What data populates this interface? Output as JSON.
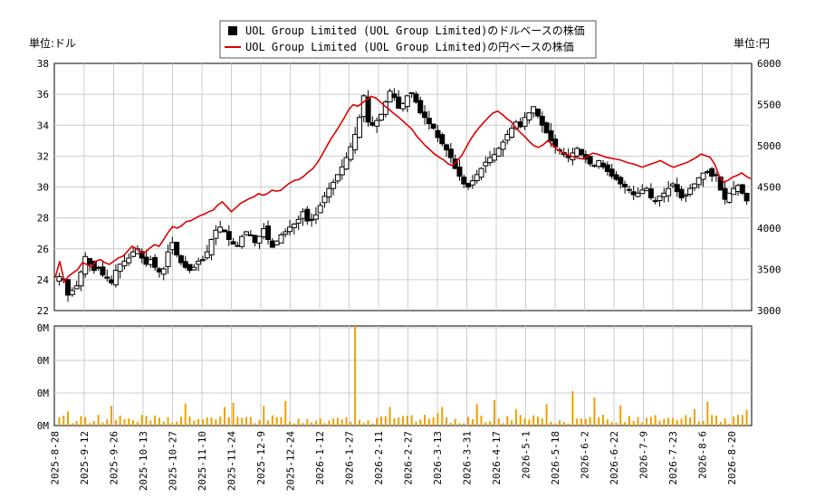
{
  "chart_data": {
    "type": "candlestick",
    "legend": [
      {
        "label": "UOL Group Limited (UOL Group Limited)のドルベースの株価",
        "color": "#000000",
        "marker": "square"
      },
      {
        "label": "UOL Group Limited (UOL Group Limited)の円ベースの株価",
        "color": "#dd0000",
        "marker": "line"
      }
    ],
    "left_unit_label": "単位:ドル",
    "right_unit_label": "単位:円",
    "volume_unit_label": "",
    "left_axis": {
      "min": 22,
      "max": 38,
      "ticks": [
        "22",
        "24",
        "26",
        "28",
        "30",
        "32",
        "34",
        "36",
        "38"
      ]
    },
    "right_axis": {
      "min": 3000,
      "max": 6000,
      "ticks": [
        "3000",
        "3500",
        "4000",
        "4500",
        "5000",
        "5500",
        "6000"
      ]
    },
    "volume_axis": {
      "ticks": [
        "0M",
        "0M",
        "0M",
        "0M"
      ]
    },
    "x_labels": [
      "2025-8-28",
      "2025-9-12",
      "2025-9-26",
      "2025-10-13",
      "2025-10-27",
      "2025-11-10",
      "2025-11-24",
      "2025-12-9",
      "2025-12-24",
      "2026-1-12",
      "2026-1-27",
      "2026-2-11",
      "2026-2-27",
      "2026-3-13",
      "2026-3-31",
      "2026-4-17",
      "2026-5-1",
      "2026-5-18",
      "2026-6-2",
      "2026-6-22",
      "2026-7-9",
      "2026-7-23",
      "2026-8-6",
      "2026-8-20"
    ],
    "usd_close": [
      24.2,
      24.0,
      23.0,
      23.3,
      23.6,
      24.5,
      25.5,
      25.0,
      24.6,
      24.8,
      24.3,
      24.1,
      23.8,
      24.6,
      25.0,
      25.2,
      25.4,
      25.8,
      26.0,
      25.4,
      25.0,
      25.3,
      24.8,
      24.5,
      24.7,
      25.8,
      26.4,
      25.6,
      25.1,
      24.8,
      24.6,
      24.8,
      25.2,
      25.3,
      25.8,
      26.6,
      27.2,
      27.4,
      27.1,
      26.6,
      26.3,
      26.2,
      26.8,
      27.1,
      26.9,
      26.4,
      26.8,
      27.3,
      26.6,
      26.1,
      26.5,
      26.9,
      27.1,
      27.4,
      27.6,
      27.9,
      28.4,
      27.8,
      27.9,
      28.2,
      28.8,
      29.4,
      29.9,
      30.3,
      30.8,
      31.3,
      31.9,
      32.6,
      33.4,
      34.5,
      35.9,
      34.2,
      34.0,
      34.3,
      34.7,
      35.5,
      36.2,
      35.8,
      35.1,
      35.4,
      35.9,
      36.1,
      35.5,
      34.8,
      34.5,
      34.1,
      33.8,
      33.2,
      32.8,
      32.4,
      31.9,
      31.2,
      30.7,
      30.2,
      30.0,
      30.4,
      30.8,
      31.2,
      31.6,
      31.9,
      32.1,
      32.5,
      32.9,
      33.4,
      33.8,
      34.2,
      33.9,
      34.5,
      34.8,
      35.2,
      34.6,
      34.0,
      33.5,
      33.0,
      32.6,
      32.4,
      32.1,
      31.9,
      32.2,
      32.5,
      32.1,
      31.8,
      31.5,
      31.4,
      31.7,
      31.3,
      31.0,
      30.7,
      30.5,
      30.2,
      30.0,
      29.8,
      29.5,
      29.6,
      29.8,
      29.9,
      29.3,
      29.1,
      29.4,
      29.6,
      29.9,
      30.2,
      29.7,
      29.3,
      29.5,
      29.9,
      30.2,
      30.6,
      30.9,
      31.0,
      30.7,
      30.8,
      29.8,
      29.2,
      29.6,
      29.9,
      30.1,
      29.6,
      29.1
    ],
    "jpy_close": [
      3400,
      3600,
      3350,
      3420,
      3460,
      3500,
      3580,
      3560,
      3530,
      3600,
      3620,
      3580,
      3560,
      3600,
      3640,
      3660,
      3720,
      3780,
      3750,
      3700,
      3710,
      3760,
      3800,
      3780,
      3860,
      3950,
      4020,
      4000,
      4030,
      4080,
      4090,
      4120,
      4150,
      4170,
      4200,
      4220,
      4280,
      4320,
      4260,
      4200,
      4250,
      4300,
      4330,
      4360,
      4380,
      4420,
      4400,
      4420,
      4460,
      4450,
      4460,
      4510,
      4550,
      4580,
      4590,
      4630,
      4680,
      4720,
      4790,
      4880,
      4980,
      5080,
      5160,
      5250,
      5340,
      5440,
      5500,
      5480,
      5520,
      5560,
      5600,
      5580,
      5530,
      5480,
      5440,
      5390,
      5350,
      5300,
      5250,
      5200,
      5120,
      5060,
      5000,
      4950,
      4900,
      4860,
      4830,
      4780,
      4760,
      4820,
      4880,
      4980,
      5080,
      5160,
      5230,
      5290,
      5350,
      5400,
      5420,
      5380,
      5330,
      5290,
      5220,
      5160,
      5110,
      5050,
      5000,
      4980,
      5010,
      5060,
      5020,
      4960,
      4930,
      4900,
      4880,
      4860,
      4850,
      4840,
      4880,
      4910,
      4900,
      4880,
      4860,
      4850,
      4840,
      4830,
      4810,
      4790,
      4780,
      4760,
      4740,
      4760,
      4780,
      4800,
      4820,
      4790,
      4760,
      4740,
      4760,
      4780,
      4800,
      4830,
      4860,
      4900,
      4880,
      4860,
      4780,
      4640,
      4560,
      4580,
      4620,
      4640,
      4670,
      4630,
      4600
    ]
  }
}
